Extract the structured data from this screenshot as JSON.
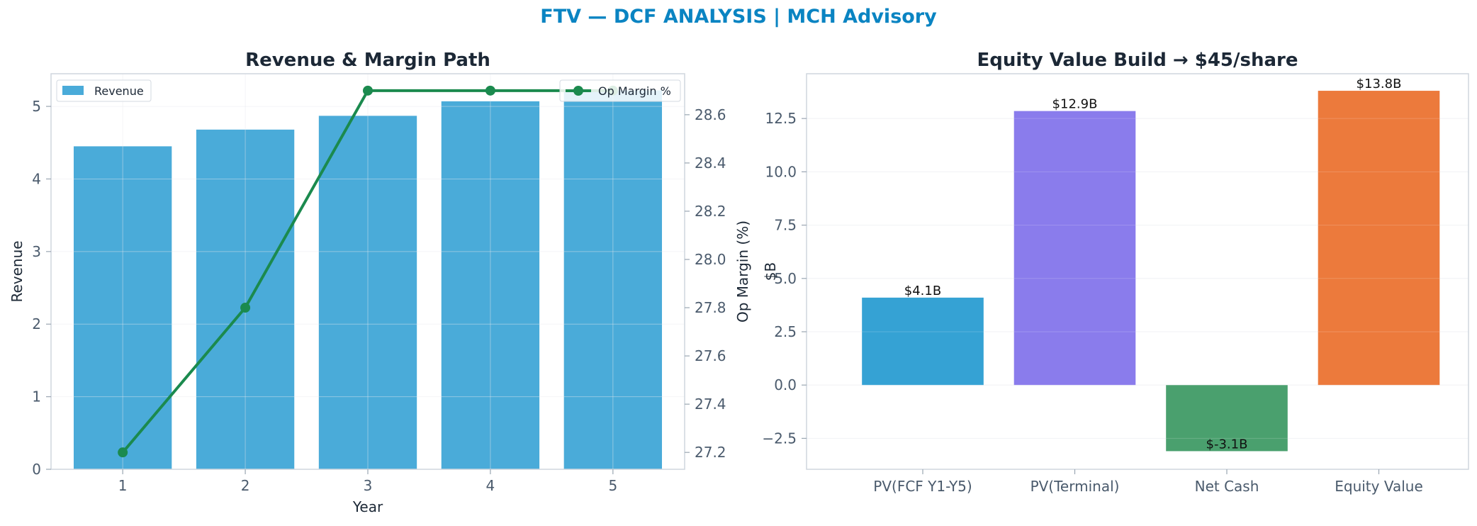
{
  "suptitle": "FTV — DCF ANALYSIS | MCH Advisory",
  "colors": {
    "suptitle": "#0a84c2",
    "revenue_bar": "#4aabd9",
    "margin_line": "#1b8a4e",
    "bars": [
      "#35a2d4",
      "#8a7cec",
      "#4aa06e",
      "#ec7a3c"
    ],
    "axis_text": "#4a5a6c",
    "title_text": "#1c2836"
  },
  "chart_data": [
    {
      "type": "bar",
      "title": "Revenue & Margin Path",
      "xlabel": "Year",
      "ylabel": "Revenue",
      "y2label": "Op Margin (%)",
      "categories": [
        "1",
        "2",
        "3",
        "4",
        "5"
      ],
      "ylim": [
        0,
        5.45
      ],
      "yticks": [
        "0",
        "1",
        "2",
        "3",
        "4",
        "5"
      ],
      "y2lim": [
        27.13,
        28.77
      ],
      "y2ticks": [
        "27.2",
        "27.4",
        "27.6",
        "27.8",
        "28.0",
        "28.2",
        "28.4",
        "28.6"
      ],
      "series": [
        {
          "name": "Revenue",
          "type": "bar",
          "axis": "left",
          "values": [
            4.45,
            4.68,
            4.87,
            5.07,
            5.22
          ]
        },
        {
          "name": "Op Margin %",
          "type": "line",
          "axis": "right",
          "values": [
            27.2,
            27.8,
            28.7,
            28.7,
            28.7
          ]
        }
      ],
      "legend": [
        {
          "label": "Revenue",
          "placement": "top-left"
        },
        {
          "label": "Op Margin %",
          "placement": "top-right"
        }
      ],
      "grid": true
    },
    {
      "type": "bar",
      "title": "Equity Value Build → $45/share",
      "xlabel": "",
      "ylabel": "$B",
      "categories": [
        "PV(FCF Y1-Y5)",
        "PV(Terminal)",
        "Net Cash",
        "Equity Value"
      ],
      "values": [
        4.1,
        12.85,
        -3.1,
        13.8
      ],
      "data_labels": [
        "$4.1B",
        "$12.9B",
        "$-3.1B",
        "$13.8B"
      ],
      "ylim": [
        -3.95,
        14.6
      ],
      "yticks": [
        "−2.5",
        "0.0",
        "2.5",
        "5.0",
        "7.5",
        "10.0",
        "12.5"
      ],
      "grid": true
    }
  ]
}
